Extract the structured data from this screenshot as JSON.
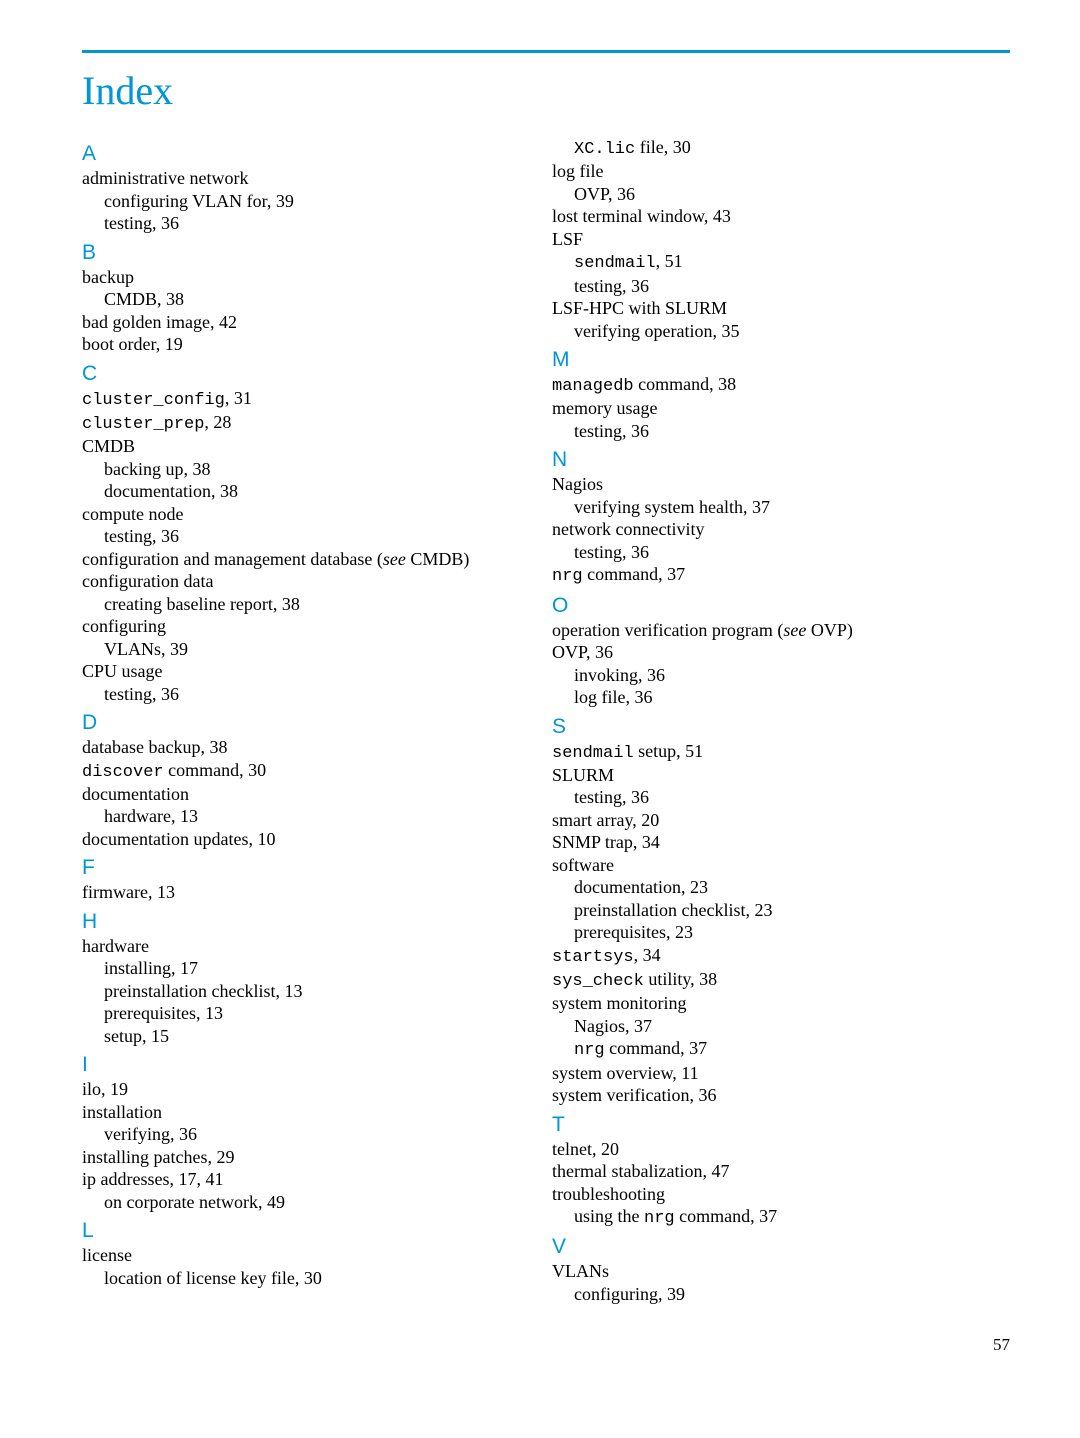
{
  "title": "Index",
  "page_number": "57",
  "colors": {
    "accent": "#0096d6",
    "text": "#000000",
    "bg": "#ffffff"
  },
  "columns": [
    [
      {
        "letter": "A",
        "entries": [
          {
            "text": "administrative network",
            "level": 0
          },
          {
            "text": "configuring VLAN for, 39",
            "level": 1
          },
          {
            "text": "testing, 36",
            "level": 1
          }
        ]
      },
      {
        "letter": "B",
        "entries": [
          {
            "text": "backup",
            "level": 0
          },
          {
            "text": "CMDB, 38",
            "level": 1
          },
          {
            "text": "bad golden image, 42",
            "level": 0
          },
          {
            "text": "boot order, 19",
            "level": 0
          }
        ]
      },
      {
        "letter": "C",
        "entries": [
          {
            "pre": "cluster_config",
            "post": ", 31",
            "level": 0
          },
          {
            "pre": "cluster_prep",
            "post": ", 28",
            "level": 0
          },
          {
            "text": "CMDB",
            "level": 0
          },
          {
            "text": "backing up, 38",
            "level": 1
          },
          {
            "text": "documentation, 38",
            "level": 1
          },
          {
            "text": "compute node",
            "level": 0
          },
          {
            "text": "testing, 36",
            "level": 1
          },
          {
            "rich": [
              {
                "t": "configuration and management database ("
              },
              {
                "t": "see",
                "italic": true
              },
              {
                "t": " CMDB)"
              }
            ],
            "level": 0
          },
          {
            "text": "configuration data",
            "level": 0
          },
          {
            "text": "creating baseline report, 38",
            "level": 1
          },
          {
            "text": "configuring",
            "level": 0
          },
          {
            "text": "VLANs, 39",
            "level": 1
          },
          {
            "text": "CPU usage",
            "level": 0
          },
          {
            "text": "testing, 36",
            "level": 1
          }
        ]
      },
      {
        "letter": "D",
        "entries": [
          {
            "text": "database backup, 38",
            "level": 0
          },
          {
            "pre": "discover",
            "post": " command, 30",
            "level": 0
          },
          {
            "text": "documentation",
            "level": 0
          },
          {
            "text": "hardware, 13",
            "level": 1
          },
          {
            "text": "documentation updates, 10",
            "level": 0
          }
        ]
      },
      {
        "letter": "F",
        "entries": [
          {
            "text": "firmware, 13",
            "level": 0
          }
        ]
      },
      {
        "letter": "H",
        "entries": [
          {
            "text": "hardware",
            "level": 0
          },
          {
            "text": "installing, 17",
            "level": 1
          },
          {
            "text": "preinstallation checklist, 13",
            "level": 1
          },
          {
            "text": "prerequisites, 13",
            "level": 1
          },
          {
            "text": "setup, 15",
            "level": 1
          }
        ]
      },
      {
        "letter": "I",
        "entries": [
          {
            "text": "ilo, 19",
            "level": 0
          },
          {
            "text": "installation",
            "level": 0
          },
          {
            "text": "verifying, 36",
            "level": 1
          },
          {
            "text": "installing patches, 29",
            "level": 0
          },
          {
            "text": "ip addresses, 17, 41",
            "level": 0
          },
          {
            "text": "on corporate network, 49",
            "level": 1
          }
        ]
      },
      {
        "letter": "L",
        "entries": [
          {
            "text": "license",
            "level": 0
          },
          {
            "text": "location of license key file, 30",
            "level": 1
          }
        ]
      }
    ],
    [
      {
        "letter": "",
        "entries": [
          {
            "pre": "XC.lic",
            "post": " file, 30",
            "level": 1
          },
          {
            "text": "log file",
            "level": 0
          },
          {
            "text": "OVP, 36",
            "level": 1
          },
          {
            "text": "lost terminal window, 43",
            "level": 0
          },
          {
            "text": "LSF",
            "level": 0
          },
          {
            "pre": "sendmail",
            "post": ", 51",
            "level": 1
          },
          {
            "text": "testing, 36",
            "level": 1
          },
          {
            "text": "LSF-HPC with SLURM",
            "level": 0
          },
          {
            "text": "verifying operation, 35",
            "level": 1
          }
        ]
      },
      {
        "letter": "M",
        "entries": [
          {
            "pre": "managedb",
            "post": " command, 38",
            "level": 0
          },
          {
            "text": "memory usage",
            "level": 0
          },
          {
            "text": "testing, 36",
            "level": 1
          }
        ]
      },
      {
        "letter": "N",
        "entries": [
          {
            "text": "Nagios",
            "level": 0
          },
          {
            "text": "verifying system health, 37",
            "level": 1
          },
          {
            "text": "network connectivity",
            "level": 0
          },
          {
            "text": "testing, 36",
            "level": 1
          },
          {
            "pre": "nrg",
            "post": " command, 37",
            "level": 0
          }
        ]
      },
      {
        "letter": "O",
        "entries": [
          {
            "rich": [
              {
                "t": "operation verification program ("
              },
              {
                "t": "see",
                "italic": true
              },
              {
                "t": " OVP)"
              }
            ],
            "level": 0
          },
          {
            "text": "OVP, 36",
            "level": 0
          },
          {
            "text": "invoking, 36",
            "level": 1
          },
          {
            "text": "log file, 36",
            "level": 1
          }
        ]
      },
      {
        "letter": "S",
        "entries": [
          {
            "pre": "sendmail",
            "post": " setup, 51",
            "level": 0
          },
          {
            "text": "SLURM",
            "level": 0
          },
          {
            "text": "testing, 36",
            "level": 1
          },
          {
            "text": "smart array, 20",
            "level": 0
          },
          {
            "text": "SNMP trap, 34",
            "level": 0
          },
          {
            "text": "software",
            "level": 0
          },
          {
            "text": "documentation, 23",
            "level": 1
          },
          {
            "text": "preinstallation checklist, 23",
            "level": 1
          },
          {
            "text": "prerequisites, 23",
            "level": 1
          },
          {
            "pre": "startsys",
            "post": ", 34",
            "level": 0
          },
          {
            "pre": "sys_check",
            "post": " utility, 38",
            "level": 0
          },
          {
            "text": "system monitoring",
            "level": 0
          },
          {
            "text": "Nagios, 37",
            "level": 1
          },
          {
            "pre": "nrg",
            "post": " command, 37",
            "level": 1
          },
          {
            "text": "system overview, 11",
            "level": 0
          },
          {
            "text": "system verification, 36",
            "level": 0
          }
        ]
      },
      {
        "letter": "T",
        "entries": [
          {
            "text": "telnet, 20",
            "level": 0
          },
          {
            "text": "thermal stabalization, 47",
            "level": 0
          },
          {
            "text": "troubleshooting",
            "level": 0
          },
          {
            "rich": [
              {
                "t": "using the "
              },
              {
                "t": "nrg",
                "mono": true
              },
              {
                "t": " command, 37"
              }
            ],
            "level": 1
          }
        ]
      },
      {
        "letter": "V",
        "entries": [
          {
            "text": "VLANs",
            "level": 0
          },
          {
            "text": "configuring, 39",
            "level": 1
          }
        ]
      }
    ]
  ]
}
